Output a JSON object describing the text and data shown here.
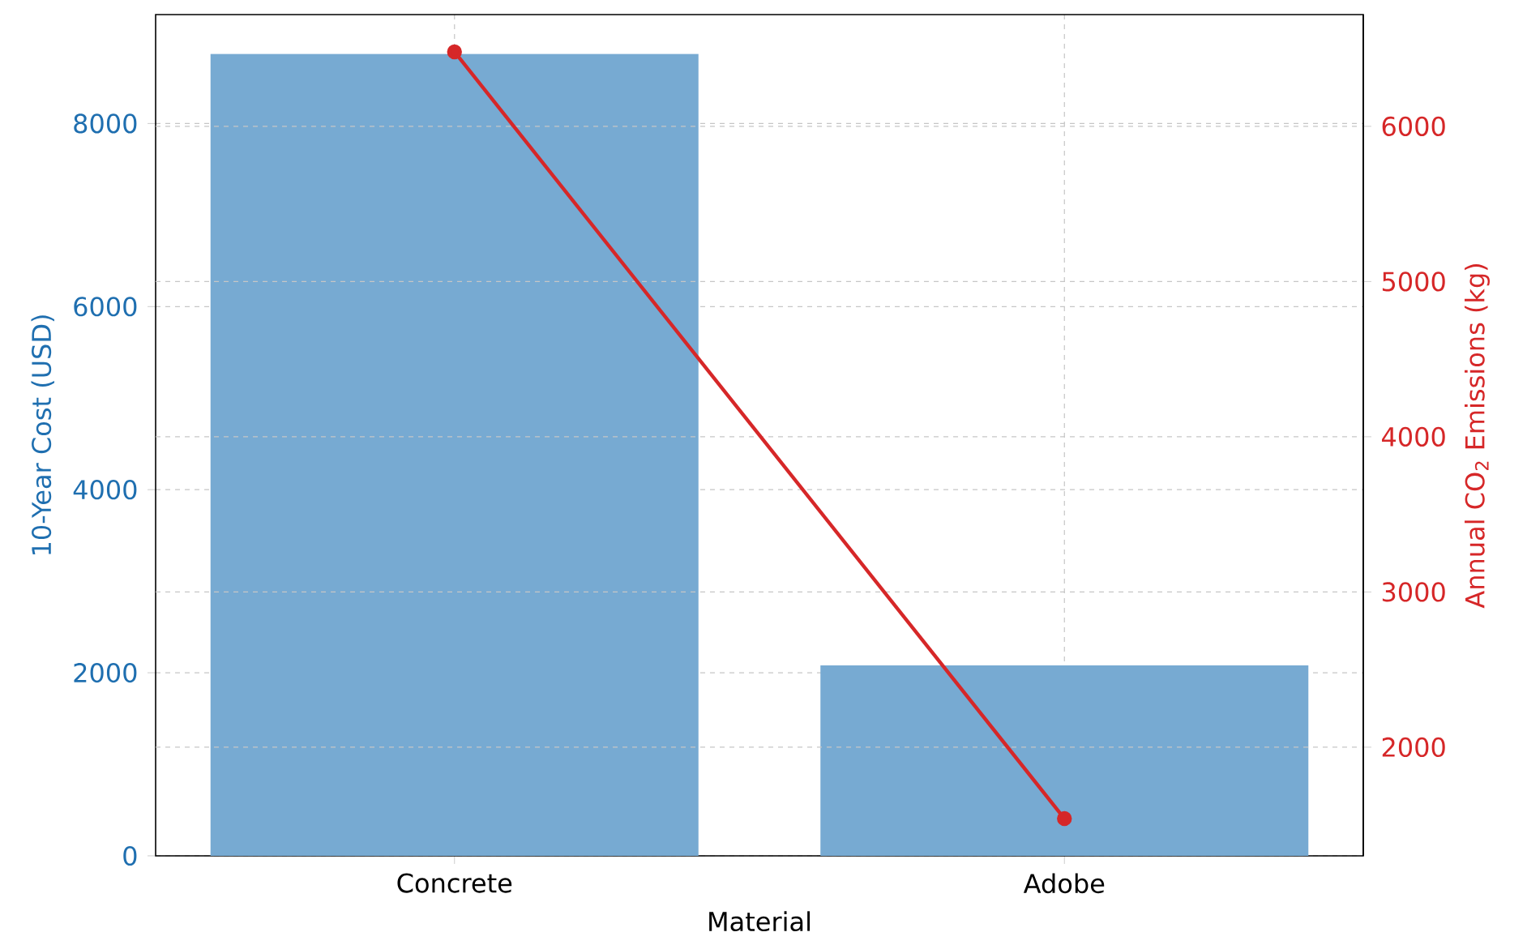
{
  "chart_data": {
    "type": "bar",
    "xlabel": "Material",
    "ylabel": "10-Year Cost (USD)",
    "y2label": "Annual CO$_{2}$ Emissions (kg)",
    "categories": [
      "Concrete",
      "Adobe"
    ],
    "series": [
      {
        "color": "#77aad2",
        "values": [
          8760,
          2080
        ]
      },
      {
        "type": "line",
        "axis": "y2",
        "color": "#d62728",
        "values": [
          6480,
          1540
        ]
      }
    ],
    "ylim": [
      0,
      9190
    ],
    "yticks": [
      0,
      2000,
      4000,
      6000,
      8000
    ],
    "y2lim": [
      1300,
      6720
    ],
    "y2ticks": [
      2000,
      3000,
      4000,
      5000,
      6000
    ],
    "grid": true,
    "marker": "circle"
  }
}
